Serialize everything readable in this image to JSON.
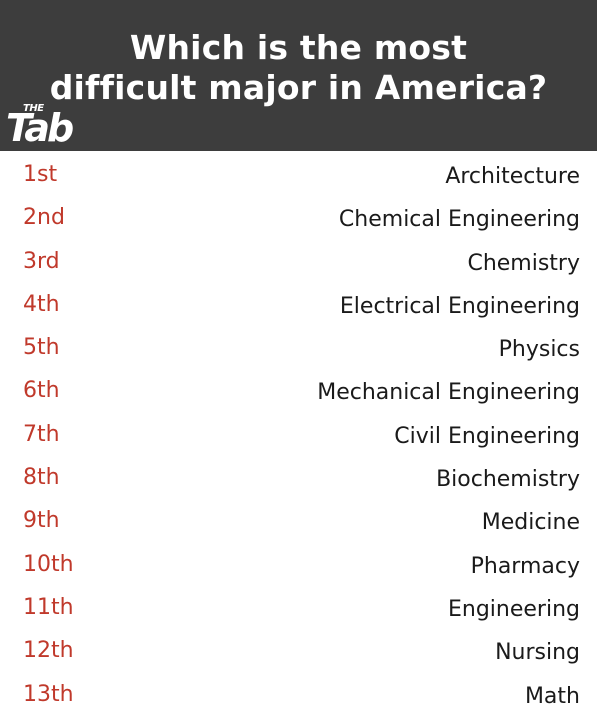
{
  "header": {
    "title_line1": "Which is the most",
    "title_line2": "difficult major in America?",
    "logo_small": "THE",
    "logo_large": "Tab"
  },
  "colors": {
    "header_bg": "#3d3d3d",
    "rank_text": "#c0392b",
    "major_text": "#1a1a1a"
  },
  "rankings": [
    {
      "rank": "1st",
      "major": "Architecture"
    },
    {
      "rank": "2nd",
      "major": "Chemical Engineering"
    },
    {
      "rank": "3rd",
      "major": "Chemistry"
    },
    {
      "rank": "4th",
      "major": "Electrical Engineering"
    },
    {
      "rank": "5th",
      "major": "Physics"
    },
    {
      "rank": "6th",
      "major": "Mechanical Engineering"
    },
    {
      "rank": "7th",
      "major": "Civil Engineering"
    },
    {
      "rank": "8th",
      "major": "Biochemistry"
    },
    {
      "rank": "9th",
      "major": "Medicine"
    },
    {
      "rank": "10th",
      "major": "Pharmacy"
    },
    {
      "rank": "11th",
      "major": "Engineering"
    },
    {
      "rank": "12th",
      "major": "Nursing"
    },
    {
      "rank": "13th",
      "major": "Math"
    }
  ]
}
